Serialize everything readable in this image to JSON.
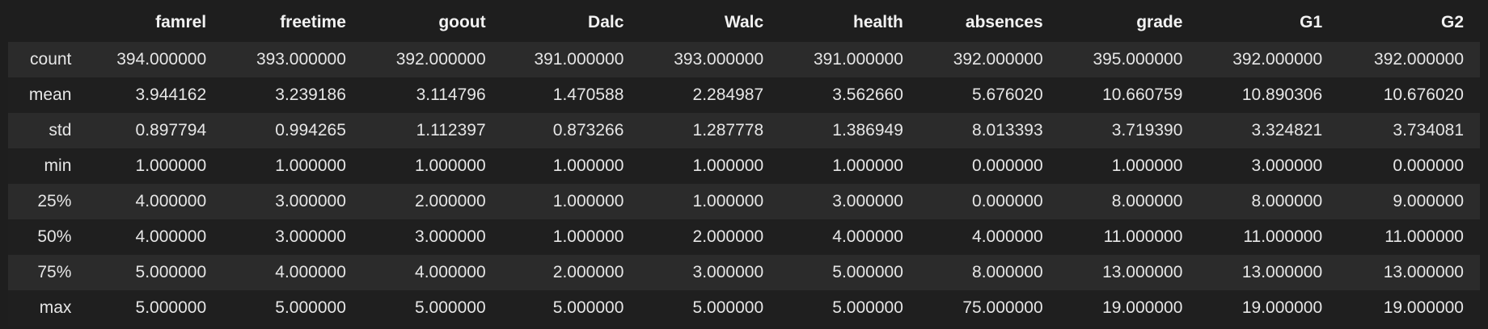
{
  "table": {
    "columns": [
      "famrel",
      "freetime",
      "goout",
      "Dalc",
      "Walc",
      "health",
      "absences",
      "grade",
      "G1",
      "G2"
    ],
    "rows": [
      {
        "index": "count",
        "values": [
          "394.000000",
          "393.000000",
          "392.000000",
          "391.000000",
          "393.000000",
          "391.000000",
          "392.000000",
          "395.000000",
          "392.000000",
          "392.000000"
        ]
      },
      {
        "index": "mean",
        "values": [
          "3.944162",
          "3.239186",
          "3.114796",
          "1.470588",
          "2.284987",
          "3.562660",
          "5.676020",
          "10.660759",
          "10.890306",
          "10.676020"
        ]
      },
      {
        "index": "std",
        "values": [
          "0.897794",
          "0.994265",
          "1.112397",
          "0.873266",
          "1.287778",
          "1.386949",
          "8.013393",
          "3.719390",
          "3.324821",
          "3.734081"
        ]
      },
      {
        "index": "min",
        "values": [
          "1.000000",
          "1.000000",
          "1.000000",
          "1.000000",
          "1.000000",
          "1.000000",
          "0.000000",
          "1.000000",
          "3.000000",
          "0.000000"
        ]
      },
      {
        "index": "25%",
        "values": [
          "4.000000",
          "3.000000",
          "2.000000",
          "1.000000",
          "1.000000",
          "3.000000",
          "0.000000",
          "8.000000",
          "8.000000",
          "9.000000"
        ]
      },
      {
        "index": "50%",
        "values": [
          "4.000000",
          "3.000000",
          "3.000000",
          "1.000000",
          "2.000000",
          "4.000000",
          "4.000000",
          "11.000000",
          "11.000000",
          "11.000000"
        ]
      },
      {
        "index": "75%",
        "values": [
          "5.000000",
          "4.000000",
          "4.000000",
          "2.000000",
          "3.000000",
          "5.000000",
          "8.000000",
          "13.000000",
          "13.000000",
          "13.000000"
        ]
      },
      {
        "index": "max",
        "values": [
          "5.000000",
          "5.000000",
          "5.000000",
          "5.000000",
          "5.000000",
          "5.000000",
          "75.000000",
          "19.000000",
          "19.000000",
          "19.000000"
        ]
      }
    ]
  },
  "colors": {
    "background": "#1e1e1e",
    "row_stripe": "#2b2b2b",
    "text": "#e6e6e6"
  }
}
